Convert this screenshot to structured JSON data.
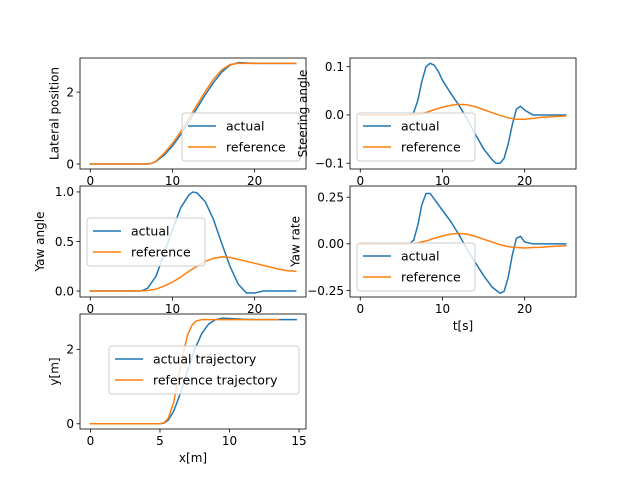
{
  "colors": {
    "actual": "#1f77b4",
    "reference": "#ff7f0e"
  },
  "chart_data": [
    {
      "id": "lateral",
      "type": "line",
      "ylabel": "Lateral position",
      "xlabel": "",
      "xlim": [
        -1.25,
        26.25
      ],
      "ylim": [
        -0.14,
        2.95
      ],
      "xticks": [
        0,
        10,
        20
      ],
      "yticks": [
        0,
        2
      ],
      "ytick_labels": [
        "0",
        "2"
      ],
      "legend": "lower-right",
      "series": [
        {
          "name": "actual",
          "color_key": "actual",
          "x": [
            0,
            7,
            7.5,
            8,
            9,
            10,
            11,
            12,
            13,
            14,
            15,
            16,
            17,
            18,
            19,
            20,
            21,
            25
          ],
          "y": [
            0,
            0,
            0.02,
            0.07,
            0.25,
            0.5,
            0.82,
            1.18,
            1.56,
            1.93,
            2.27,
            2.56,
            2.75,
            2.82,
            2.81,
            2.8,
            2.8,
            2.8
          ]
        },
        {
          "name": "reference",
          "color_key": "reference",
          "x": [
            0,
            7,
            7.5,
            8,
            9,
            10,
            11,
            12,
            13,
            14,
            15,
            16,
            17,
            18,
            19,
            20,
            21,
            25
          ],
          "y": [
            0,
            0,
            0.02,
            0.08,
            0.3,
            0.57,
            0.9,
            1.27,
            1.65,
            2.02,
            2.36,
            2.62,
            2.77,
            2.8,
            2.8,
            2.8,
            2.8,
            2.8
          ]
        }
      ]
    },
    {
      "id": "steering",
      "type": "line",
      "ylabel": "Steering angle",
      "xlabel": "",
      "xlim": [
        -1.25,
        26.25
      ],
      "ylim": [
        -0.112,
        0.118
      ],
      "xticks": [
        0,
        10,
        20
      ],
      "yticks": [
        -0.1,
        0,
        0.1
      ],
      "ytick_labels": [
        "−0.1",
        "0.0",
        "0.1"
      ],
      "legend": "lower-left",
      "series": [
        {
          "name": "actual",
          "color_key": "actual",
          "x": [
            0,
            6,
            6.5,
            7,
            7.5,
            8,
            8.5,
            9,
            9.5,
            10,
            11,
            12,
            13,
            14,
            15,
            16,
            16.5,
            17,
            17.5,
            18,
            18.5,
            19,
            19.5,
            20,
            21,
            22,
            25
          ],
          "y": [
            0,
            0,
            0.005,
            0.03,
            0.07,
            0.1,
            0.107,
            0.103,
            0.09,
            0.072,
            0.045,
            0.02,
            -0.008,
            -0.04,
            -0.07,
            -0.092,
            -0.1,
            -0.1,
            -0.09,
            -0.06,
            -0.02,
            0.012,
            0.018,
            0.01,
            0,
            0,
            0
          ]
        },
        {
          "name": "reference",
          "color_key": "reference",
          "x": [
            0,
            6,
            7,
            8,
            9,
            10,
            11,
            12,
            13,
            14,
            15,
            16,
            17,
            18,
            19,
            20,
            21,
            22,
            23,
            24,
            25
          ],
          "y": [
            0,
            0,
            0.001,
            0.005,
            0.011,
            0.016,
            0.02,
            0.022,
            0.021,
            0.017,
            0.011,
            0.005,
            -0.001,
            -0.006,
            -0.009,
            -0.009,
            -0.007,
            -0.005,
            -0.004,
            -0.003,
            -0.002
          ]
        }
      ]
    },
    {
      "id": "yaw",
      "type": "line",
      "ylabel": "Yaw angle",
      "xlabel": "",
      "xlim": [
        -1.25,
        26.25
      ],
      "ylim": [
        -0.06,
        1.06
      ],
      "xticks": [
        0,
        10,
        20
      ],
      "yticks": [
        0,
        0.5,
        1
      ],
      "ytick_labels": [
        "0.0",
        "0.5",
        "1.0"
      ],
      "legend": "center-left",
      "series": [
        {
          "name": "actual",
          "color_key": "actual",
          "x": [
            0,
            6,
            6.5,
            7,
            8,
            9,
            10,
            11,
            12,
            12.5,
            13,
            14,
            15,
            16,
            17,
            18,
            19,
            20,
            21,
            22,
            25
          ],
          "y": [
            0,
            0,
            0.01,
            0.03,
            0.15,
            0.38,
            0.62,
            0.84,
            0.97,
            1.0,
            0.99,
            0.9,
            0.72,
            0.48,
            0.25,
            0.07,
            -0.02,
            -0.02,
            0,
            0,
            0
          ]
        },
        {
          "name": "reference",
          "color_key": "reference",
          "x": [
            0,
            6,
            7,
            8,
            9,
            10,
            11,
            12,
            13,
            14,
            15,
            16,
            17,
            18,
            19,
            20,
            21,
            22,
            23,
            24,
            25
          ],
          "y": [
            0,
            0,
            0.005,
            0.02,
            0.05,
            0.09,
            0.14,
            0.2,
            0.25,
            0.3,
            0.33,
            0.345,
            0.34,
            0.32,
            0.3,
            0.28,
            0.26,
            0.24,
            0.22,
            0.205,
            0.2
          ]
        }
      ]
    },
    {
      "id": "yawrate",
      "type": "line",
      "ylabel": "Yaw rate",
      "xlabel": "t[s]",
      "xlim": [
        -1.25,
        26.25
      ],
      "ylim": [
        -0.285,
        0.31
      ],
      "xticks": [
        0,
        10,
        20
      ],
      "yticks": [
        -0.25,
        0,
        0.25
      ],
      "ytick_labels": [
        "−0.25",
        "0.00",
        "0.25"
      ],
      "legend": "lower-left",
      "series": [
        {
          "name": "actual",
          "color_key": "actual",
          "x": [
            0,
            6,
            6.5,
            7,
            7.5,
            8,
            8.5,
            9,
            10,
            11,
            12,
            13,
            14,
            15,
            16,
            17,
            17.5,
            18,
            18.5,
            19,
            19.5,
            20,
            21,
            22,
            25
          ],
          "y": [
            0,
            0,
            0.02,
            0.1,
            0.21,
            0.27,
            0.27,
            0.24,
            0.18,
            0.12,
            0.05,
            -0.03,
            -0.1,
            -0.17,
            -0.23,
            -0.265,
            -0.255,
            -0.18,
            -0.06,
            0.03,
            0.04,
            0.01,
            0,
            0,
            0
          ]
        },
        {
          "name": "reference",
          "color_key": "reference",
          "x": [
            0,
            6,
            7,
            8,
            9,
            10,
            11,
            12,
            13,
            14,
            15,
            16,
            17,
            18,
            19,
            20,
            21,
            22,
            23,
            24,
            25
          ],
          "y": [
            0,
            0,
            0.005,
            0.015,
            0.03,
            0.042,
            0.052,
            0.056,
            0.052,
            0.04,
            0.025,
            0.01,
            -0.005,
            -0.015,
            -0.02,
            -0.022,
            -0.02,
            -0.018,
            -0.015,
            -0.012,
            -0.01
          ]
        }
      ]
    },
    {
      "id": "trajectory",
      "type": "line",
      "ylabel": "y[m]",
      "xlabel": "x[m]",
      "xlim": [
        -0.75,
        15.5
      ],
      "ylim": [
        -0.14,
        2.95
      ],
      "xticks": [
        0,
        5,
        10,
        15
      ],
      "yticks": [
        0,
        2
      ],
      "ytick_labels": [
        "0",
        "2"
      ],
      "legend": "center-right",
      "series": [
        {
          "name": "actual trajectory",
          "color_key": "actual",
          "x": [
            0,
            5,
            5.3,
            5.6,
            6,
            6.5,
            7,
            7.5,
            8,
            8.5,
            9,
            9.5,
            10,
            11,
            12,
            14.8
          ],
          "y": [
            0,
            0,
            0.02,
            0.1,
            0.35,
            0.85,
            1.45,
            2.0,
            2.42,
            2.68,
            2.8,
            2.84,
            2.83,
            2.81,
            2.8,
            2.8
          ]
        },
        {
          "name": "reference trajectory",
          "color_key": "reference",
          "x": [
            0,
            5,
            5.3,
            5.6,
            6,
            6.3,
            6.6,
            7,
            7.3,
            7.6,
            8,
            9,
            10,
            13.5
          ],
          "y": [
            0,
            0,
            0.03,
            0.15,
            0.6,
            1.2,
            1.8,
            2.4,
            2.65,
            2.76,
            2.8,
            2.8,
            2.8,
            2.8
          ]
        }
      ]
    }
  ]
}
